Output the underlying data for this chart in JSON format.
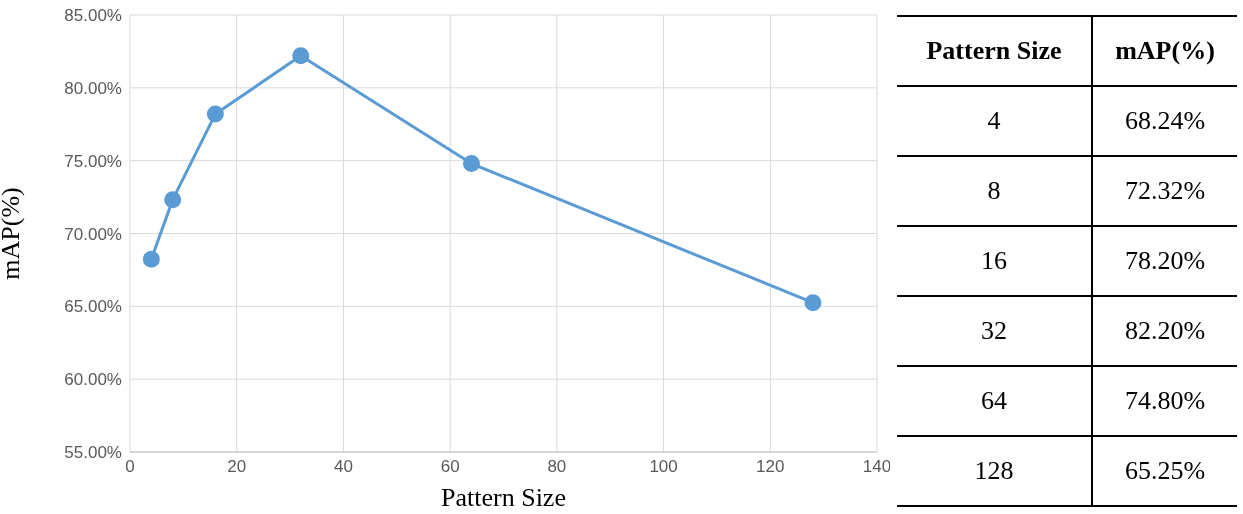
{
  "chart_data": [
    {
      "type": "line",
      "xlabel": "Pattern Size",
      "ylabel": "mAP(%)",
      "x": [
        4,
        8,
        16,
        32,
        64,
        128
      ],
      "series": [
        {
          "color": "#5b9bd5",
          "values": [
            68.24,
            72.32,
            78.2,
            82.2,
            74.8,
            65.25
          ]
        }
      ],
      "xlim": [
        0,
        140
      ],
      "xticks": [
        0,
        20,
        40,
        60,
        80,
        100,
        120,
        140
      ],
      "ylim": [
        55,
        85
      ],
      "yticks": [
        {
          "value": 55,
          "label": "55.00%"
        },
        {
          "value": 60,
          "label": "60.00%"
        },
        {
          "value": 65,
          "label": "65.00%"
        },
        {
          "value": 70,
          "label": "70.00%"
        },
        {
          "value": 75,
          "label": "75.00%"
        },
        {
          "value": 80,
          "label": "80.00%"
        },
        {
          "value": 85,
          "label": "85.00%"
        }
      ],
      "grid": true,
      "marker": "circle",
      "line_style": "solid"
    },
    {
      "type": "other",
      "annotations": [
        "Pattern Size",
        "mAP(%)",
        "4",
        "68.24%",
        "8",
        "72.32%",
        "16",
        "78.20%",
        "32",
        "82.20%",
        "64",
        "74.80%",
        "128",
        "65.25%"
      ]
    }
  ]
}
